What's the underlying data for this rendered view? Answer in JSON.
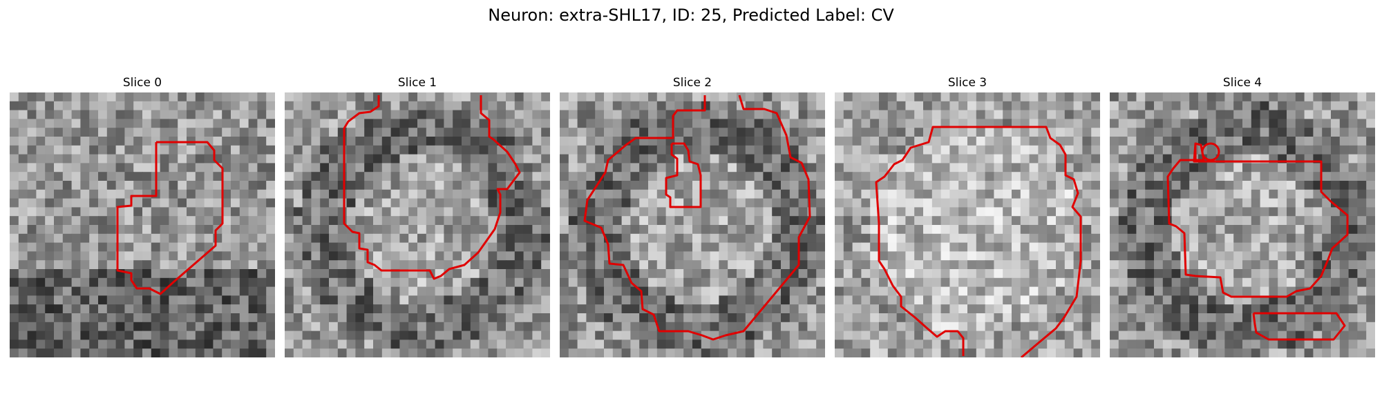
{
  "figure": {
    "title": "Neuron: extra-SHL17, ID: 25, Predicted Label: CV"
  },
  "contour_color": "#e00000",
  "panels": [
    {
      "title": "Slice 0",
      "seed": 11,
      "contrast": "dark-lower"
    },
    {
      "title": "Slice 1",
      "seed": 23,
      "contrast": "dark-ring"
    },
    {
      "title": "Slice 2",
      "seed": 37,
      "contrast": "dark-ring"
    },
    {
      "title": "Slice 3",
      "seed": 41,
      "contrast": "light"
    },
    {
      "title": "Slice 4",
      "seed": 53,
      "contrast": "dark-ring"
    }
  ]
}
